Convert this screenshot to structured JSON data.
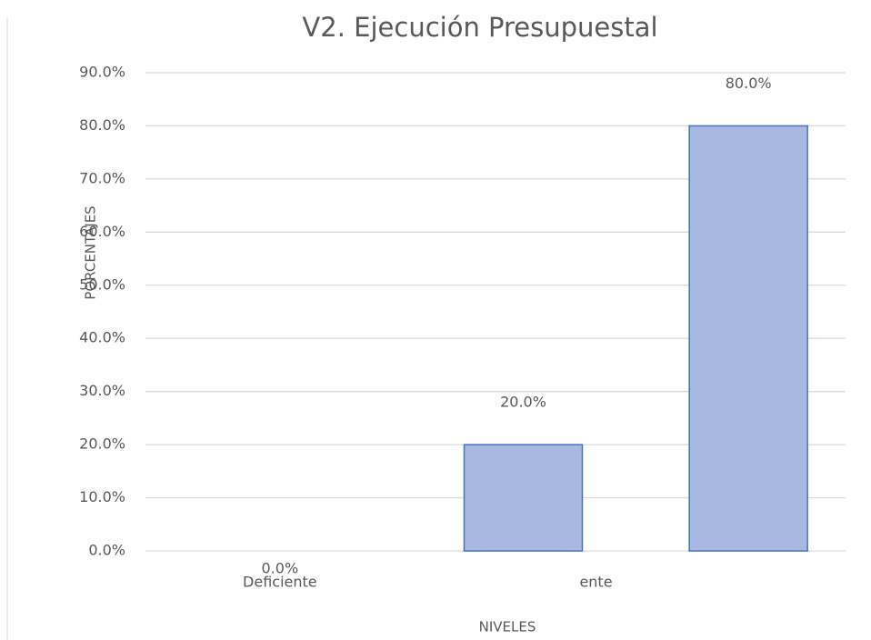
{
  "chart_data": {
    "type": "bar",
    "title": "V2. Ejecución Presupuestal",
    "y_label": "PORCENTAJES",
    "x_label": "NIVELES",
    "categories": [
      "Deficiente",
      "ente",
      null
    ],
    "values": [
      0,
      20,
      80
    ],
    "value_labels": [
      "0.0%",
      "20.0%",
      "80.0%"
    ],
    "color": "#a9b8e0",
    "edge_color": "#4472c4",
    "ylim": [
      0,
      90
    ],
    "yticks": [
      {
        "value": 0,
        "label": "0.0%"
      },
      {
        "value": 10,
        "label": "10.0%"
      },
      {
        "value": 20,
        "label": "20.0%"
      },
      {
        "value": 30,
        "label": "30.0%"
      },
      {
        "value": 40,
        "label": "40.0%"
      },
      {
        "value": 50,
        "label": "50.0%"
      },
      {
        "value": 60,
        "label": "60.0%"
      },
      {
        "value": 70,
        "label": "70.0%"
      },
      {
        "value": 80,
        "label": "80.0%"
      },
      {
        "value": 90,
        "label": "90.0%"
      }
    ],
    "grid": true
  }
}
